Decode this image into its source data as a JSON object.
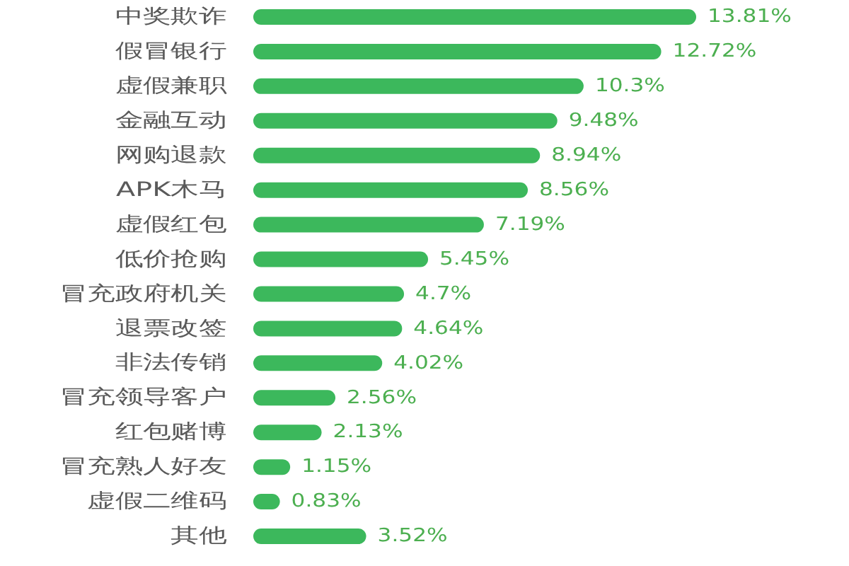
{
  "chart_data": {
    "type": "bar",
    "orientation": "horizontal",
    "categories": [
      "中奖欺诈",
      "假冒银行",
      "虚假兼职",
      "金融互动",
      "网购退款",
      "APK木马",
      "虚假红包",
      "低价抢购",
      "冒充政府机关",
      "退票改签",
      "非法传销",
      "冒充领导客户",
      "红包赌博",
      "冒充熟人好友",
      "虚假二维码",
      "其他"
    ],
    "values": [
      13.81,
      12.72,
      10.3,
      9.48,
      8.94,
      8.56,
      7.19,
      5.45,
      4.7,
      4.64,
      4.02,
      2.56,
      2.13,
      1.15,
      0.83,
      3.52
    ],
    "value_labels": [
      "13.81%",
      "12.72%",
      "10.3%",
      "9.48%",
      "8.94%",
      "8.56%",
      "7.19%",
      "5.45%",
      "4.7%",
      "4.64%",
      "4.02%",
      "2.56%",
      "2.13%",
      "1.15%",
      "0.83%",
      "3.52%"
    ],
    "color": "#3cb85c"
  }
}
